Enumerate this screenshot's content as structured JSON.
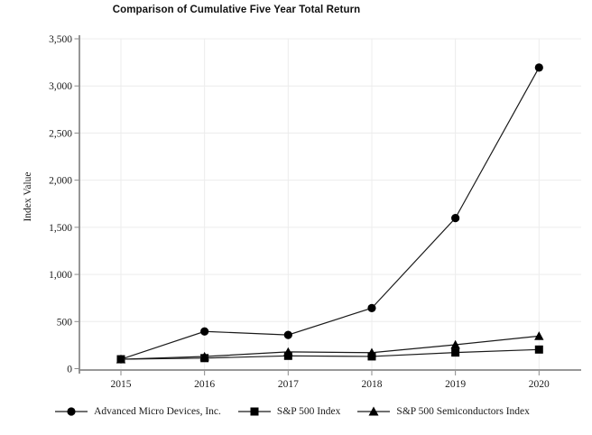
{
  "chart_data": {
    "type": "line",
    "title": "Comparison of Cumulative Five Year Total Return",
    "ylabel": "Index Value",
    "xlabel": "",
    "categories": [
      "2015",
      "2016",
      "2017",
      "2018",
      "2019",
      "2020"
    ],
    "series": [
      {
        "name": "Advanced Micro Devices, Inc.",
        "marker": "circle",
        "color": "#000000",
        "values": [
          100,
          395,
          358,
          643,
          1598,
          3195
        ]
      },
      {
        "name": "S&P 500 Index",
        "marker": "square",
        "color": "#000000",
        "values": [
          100,
          112,
          136,
          130,
          171,
          203
        ]
      },
      {
        "name": "S&P 500 Semiconductors Index",
        "marker": "triangle",
        "color": "#000000",
        "values": [
          100,
          129,
          178,
          170,
          254,
          346
        ]
      }
    ],
    "ylim": [
      0,
      3500
    ],
    "y_ticks": [
      0,
      500,
      1000,
      1500,
      2000,
      2500,
      3000,
      3500
    ],
    "y_tick_labels": [
      "0",
      "500",
      "1,000",
      "1,500",
      "2,000",
      "2,500",
      "3,000",
      "3,500"
    ],
    "grid": true,
    "legend_position": "bottom",
    "colors": {
      "series_line": "#1a1a1a",
      "marker_fill": "#000000",
      "gridline": "#ececec",
      "axis_line": "#8a8a8a",
      "text": "#1a1a1a",
      "background": "#ffffff"
    }
  }
}
